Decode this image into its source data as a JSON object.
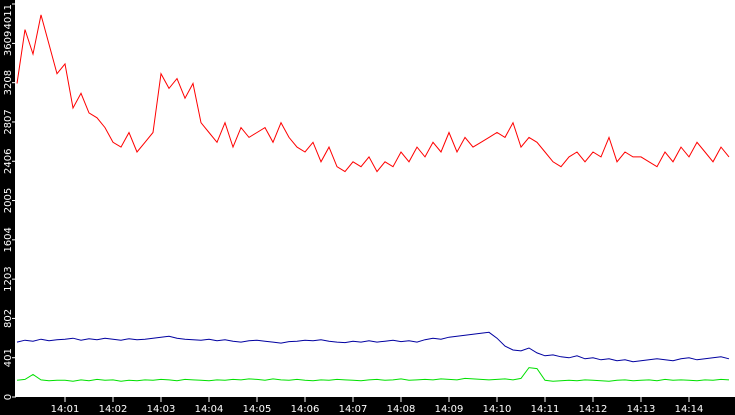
{
  "chart_data": {
    "type": "line",
    "categories": [
      null,
      null,
      null,
      null,
      null,
      null,
      "14:01",
      null,
      null,
      null,
      null,
      null,
      "14:02",
      null,
      null,
      null,
      null,
      null,
      "14:03",
      null,
      null,
      null,
      null,
      null,
      "14:04",
      null,
      null,
      null,
      null,
      null,
      "14:05",
      null,
      null,
      null,
      null,
      null,
      "14:06",
      null,
      null,
      null,
      null,
      null,
      "14:07",
      null,
      null,
      null,
      null,
      null,
      "14:08",
      null,
      null,
      null,
      null,
      null,
      "14:09",
      null,
      null,
      null,
      null,
      null,
      "14:10",
      null,
      null,
      null,
      null,
      null,
      "14:11",
      null,
      null,
      null,
      null,
      null,
      "14:12",
      null,
      null,
      null,
      null,
      null,
      "14:13",
      null,
      null,
      null,
      null,
      null,
      "14:14",
      null,
      null,
      null,
      null,
      null
    ],
    "series": [
      {
        "color": "#ff0000",
        "values": [
          3200,
          3750,
          3500,
          3900,
          3600,
          3300,
          3400,
          2950,
          3100,
          2900,
          2850,
          2750,
          2600,
          2550,
          2700,
          2500,
          2600,
          2700,
          3300,
          3150,
          3250,
          3050,
          3200,
          2800,
          2700,
          2600,
          2800,
          2550,
          2750,
          2650,
          2700,
          2750,
          2600,
          2800,
          2650,
          2550,
          2500,
          2600,
          2400,
          2550,
          2350,
          2300,
          2400,
          2350,
          2450,
          2300,
          2400,
          2350,
          2500,
          2400,
          2550,
          2450,
          2600,
          2500,
          2700,
          2500,
          2650,
          2550,
          2600,
          2650,
          2700,
          2650,
          2800,
          2550,
          2650,
          2600,
          2500,
          2400,
          2350,
          2450,
          2500,
          2400,
          2500,
          2450,
          2650,
          2400,
          2500,
          2450,
          2450,
          2400,
          2350,
          2500,
          2400,
          2550,
          2450,
          2600,
          2500,
          2400,
          2550,
          2450
        ]
      },
      {
        "color": "#0000a0",
        "values": [
          560,
          580,
          570,
          590,
          575,
          585,
          590,
          600,
          580,
          595,
          585,
          600,
          590,
          580,
          595,
          585,
          590,
          600,
          610,
          620,
          600,
          590,
          585,
          580,
          590,
          575,
          585,
          570,
          560,
          575,
          580,
          570,
          560,
          550,
          565,
          570,
          580,
          575,
          585,
          570,
          560,
          555,
          570,
          560,
          575,
          560,
          570,
          580,
          565,
          575,
          560,
          585,
          600,
          590,
          610,
          620,
          630,
          640,
          650,
          660,
          600,
          520,
          480,
          470,
          500,
          450,
          420,
          430,
          410,
          400,
          420,
          390,
          400,
          380,
          390,
          370,
          380,
          360,
          370,
          380,
          390,
          380,
          370,
          390,
          400,
          380,
          390,
          400,
          410,
          390
        ]
      },
      {
        "color": "#00e000",
        "values": [
          170,
          180,
          230,
          175,
          165,
          170,
          170,
          160,
          175,
          165,
          180,
          170,
          175,
          160,
          170,
          165,
          175,
          170,
          180,
          175,
          165,
          180,
          175,
          170,
          165,
          175,
          170,
          180,
          175,
          185,
          180,
          170,
          185,
          175,
          170,
          180,
          170,
          165,
          175,
          170,
          180,
          175,
          170,
          165,
          175,
          180,
          170,
          175,
          185,
          170,
          175,
          180,
          175,
          185,
          180,
          175,
          190,
          185,
          180,
          175,
          180,
          185,
          175,
          190,
          300,
          290,
          170,
          160,
          165,
          170,
          165,
          175,
          170,
          165,
          160,
          170,
          175,
          165,
          170,
          175,
          165,
          180,
          170,
          175,
          170,
          165,
          175,
          170,
          180,
          175
        ]
      }
    ],
    "ylim": [
      0,
      4011
    ],
    "yticks": [
      0,
      401,
      802,
      1203,
      1604,
      2005,
      2406,
      2807,
      3208,
      3609,
      4011
    ]
  }
}
